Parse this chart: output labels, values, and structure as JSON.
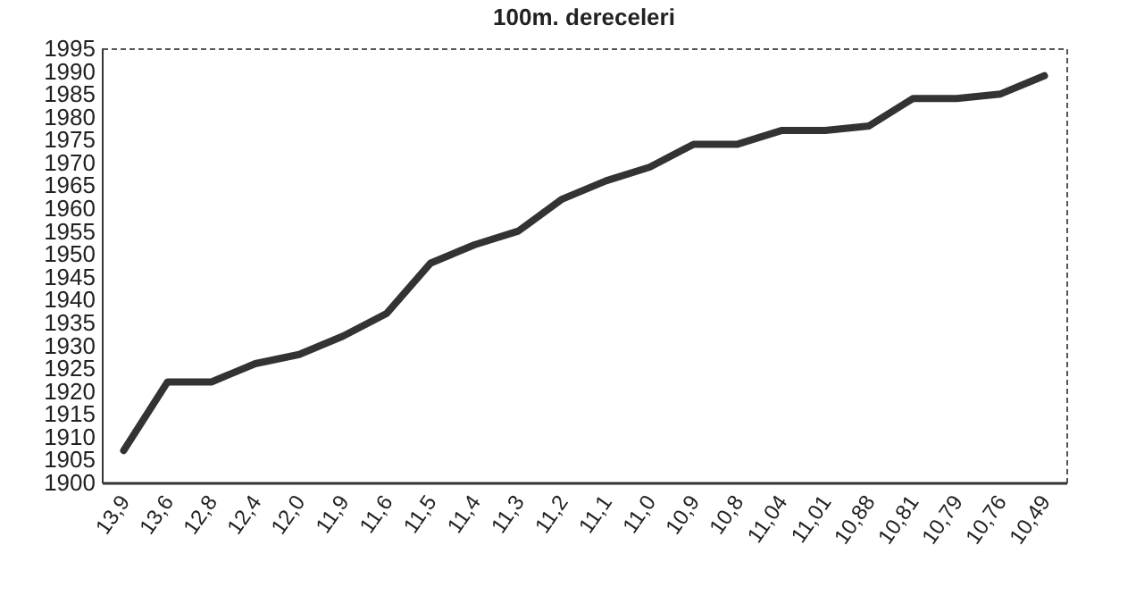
{
  "chart_data": {
    "type": "line",
    "title": "100m. dereceleri",
    "categories": [
      "13,9",
      "13,6",
      "12,8",
      "12,4",
      "12,0",
      "11,9",
      "11,6",
      "11,5",
      "11,4",
      "11,3",
      "11,2",
      "11,1",
      "11,0",
      "10,9",
      "10,8",
      "11,04",
      "11,01",
      "10,88",
      "10,81",
      "10,79",
      "10,76",
      "10,49"
    ],
    "series": [
      {
        "color": "#333333",
        "values": [
          1907,
          1922,
          1922,
          1926,
          1928,
          1932,
          1937,
          1948,
          1952,
          1955,
          1962,
          1966,
          1969,
          1974,
          1974,
          1977,
          1977,
          1978,
          1984,
          1984,
          1985,
          1989
        ]
      }
    ],
    "ylim": [
      1900,
      1995
    ],
    "yticks": [
      1900,
      1905,
      1910,
      1915,
      1920,
      1925,
      1930,
      1935,
      1940,
      1945,
      1950,
      1955,
      1960,
      1965,
      1970,
      1975,
      1980,
      1985,
      1990,
      1995
    ],
    "grid": false,
    "legend": false,
    "marker": "none",
    "line_style": "solid"
  }
}
